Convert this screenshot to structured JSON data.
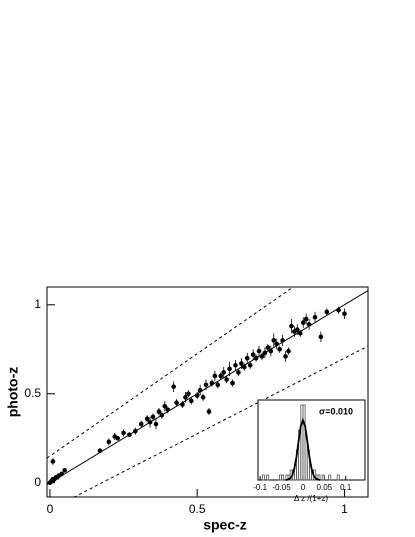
{
  "chart_data": [
    {
      "type": "scatter",
      "xlabel": "spec-z",
      "ylabel": "photo-z",
      "xlim": [
        -0.01,
        1.08
      ],
      "ylim": [
        -0.08,
        1.1
      ],
      "xticks": [
        0,
        0.5,
        1
      ],
      "yticks": [
        0,
        0.5,
        1
      ],
      "color": "#000000",
      "reference_lines": [
        {
          "slope": 1,
          "intercept": 0,
          "dashed": false
        },
        {
          "slope": 1.15,
          "intercept": 0.15,
          "dashed": true
        },
        {
          "slope": 0.85,
          "intercept": -0.15,
          "dashed": true
        }
      ],
      "x": [
        0.0,
        0.005,
        0.01,
        0.01,
        0.015,
        0.02,
        0.025,
        0.03,
        0.04,
        0.05,
        0.01,
        0.17,
        0.2,
        0.22,
        0.23,
        0.25,
        0.27,
        0.29,
        0.31,
        0.33,
        0.34,
        0.35,
        0.36,
        0.37,
        0.38,
        0.39,
        0.4,
        0.42,
        0.43,
        0.45,
        0.46,
        0.47,
        0.48,
        0.5,
        0.51,
        0.52,
        0.53,
        0.54,
        0.55,
        0.56,
        0.57,
        0.58,
        0.59,
        0.6,
        0.61,
        0.62,
        0.63,
        0.64,
        0.65,
        0.66,
        0.67,
        0.68,
        0.69,
        0.7,
        0.71,
        0.72,
        0.73,
        0.74,
        0.75,
        0.76,
        0.77,
        0.78,
        0.79,
        0.8,
        0.81,
        0.82,
        0.83,
        0.84,
        0.85,
        0.86,
        0.87,
        0.88,
        0.9,
        0.92,
        0.94,
        0.98,
        1.0
      ],
      "values": [
        0.0,
        0.01,
        0.12,
        0.02,
        0.02,
        0.03,
        0.03,
        0.04,
        0.05,
        0.07,
        0.01,
        0.18,
        0.23,
        0.26,
        0.25,
        0.28,
        0.27,
        0.29,
        0.33,
        0.36,
        0.34,
        0.37,
        0.33,
        0.4,
        0.38,
        0.43,
        0.41,
        0.54,
        0.45,
        0.44,
        0.48,
        0.5,
        0.46,
        0.49,
        0.52,
        0.48,
        0.55,
        0.4,
        0.56,
        0.6,
        0.55,
        0.6,
        0.62,
        0.58,
        0.64,
        0.56,
        0.66,
        0.62,
        0.67,
        0.65,
        0.7,
        0.66,
        0.72,
        0.7,
        0.74,
        0.71,
        0.73,
        0.76,
        0.74,
        0.8,
        0.78,
        0.75,
        0.8,
        0.71,
        0.74,
        0.88,
        0.85,
        0.86,
        0.84,
        0.9,
        0.92,
        0.89,
        0.93,
        0.82,
        0.96,
        0.97,
        0.95
      ],
      "errors": [
        0.01,
        0.01,
        0.02,
        0.01,
        0.01,
        0.01,
        0.01,
        0.01,
        0.01,
        0.01,
        0.01,
        0.01,
        0.02,
        0.02,
        0.01,
        0.02,
        0.01,
        0.02,
        0.02,
        0.02,
        0.03,
        0.02,
        0.03,
        0.02,
        0.02,
        0.03,
        0.02,
        0.03,
        0.02,
        0.02,
        0.03,
        0.02,
        0.02,
        0.02,
        0.03,
        0.02,
        0.03,
        0.02,
        0.02,
        0.03,
        0.02,
        0.02,
        0.03,
        0.02,
        0.04,
        0.02,
        0.03,
        0.02,
        0.03,
        0.02,
        0.03,
        0.02,
        0.03,
        0.02,
        0.03,
        0.02,
        0.03,
        0.02,
        0.03,
        0.04,
        0.03,
        0.02,
        0.03,
        0.03,
        0.02,
        0.04,
        0.03,
        0.03,
        0.02,
        0.03,
        0.03,
        0.03,
        0.03,
        0.03,
        0.02,
        0.02,
        0.03
      ]
    },
    {
      "type": "histogram",
      "xlabel": "Δ z /(1+z)",
      "annotation": "σ=0.010",
      "xlim": [
        -0.105,
        0.145
      ],
      "ylim": [
        0,
        16
      ],
      "xticks": [
        -0.1,
        -0.05,
        0,
        0.05,
        0.1
      ],
      "color": "#555555",
      "bins": [
        -0.1,
        -0.095,
        -0.09,
        -0.085,
        -0.08,
        -0.075,
        -0.07,
        -0.065,
        -0.06,
        -0.055,
        -0.05,
        -0.045,
        -0.04,
        -0.035,
        -0.03,
        -0.025,
        -0.02,
        -0.015,
        -0.01,
        -0.005,
        0,
        0.005,
        0.01,
        0.015,
        0.02,
        0.025,
        0.03,
        0.035,
        0.04,
        0.045,
        0.05,
        0.055,
        0.06,
        0.065,
        0.07,
        0.075,
        0.08,
        0.085,
        0.09,
        0.095,
        0.1
      ],
      "counts": [
        0,
        1,
        0,
        1,
        0,
        0,
        0,
        0,
        0,
        1,
        1,
        0,
        1,
        1,
        2,
        2,
        3,
        6,
        10,
        15,
        15,
        9,
        6,
        3,
        2,
        2,
        1,
        1,
        0,
        1,
        0,
        0,
        1,
        0,
        0,
        0,
        1,
        0,
        0,
        0
      ],
      "fit": {
        "color": "#000000",
        "x": [
          -0.04,
          -0.035,
          -0.03,
          -0.025,
          -0.02,
          -0.015,
          -0.01,
          -0.005,
          0,
          0.005,
          0.01,
          0.015,
          0.02,
          0.025,
          0.03,
          0.035,
          0.04
        ],
        "y": [
          0.0,
          0.1,
          0.3,
          0.9,
          2.3,
          4.7,
          7.9,
          10.8,
          12,
          10.8,
          7.9,
          4.7,
          2.3,
          0.9,
          0.3,
          0.1,
          0.0
        ]
      }
    }
  ]
}
